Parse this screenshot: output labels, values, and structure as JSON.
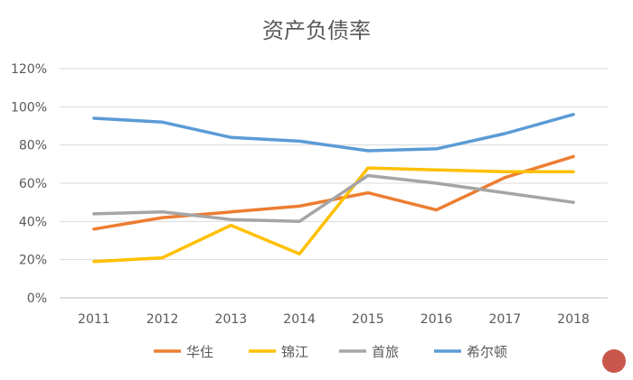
{
  "chart_data": {
    "type": "line",
    "title": "资产负债率",
    "categories": [
      "2011",
      "2012",
      "2013",
      "2014",
      "2015",
      "2016",
      "2017",
      "2018"
    ],
    "yticks": [
      "0%",
      "20%",
      "40%",
      "60%",
      "80%",
      "100%",
      "120%"
    ],
    "ylim": [
      0,
      120
    ],
    "grid": true,
    "legend_position": "bottom",
    "series": [
      {
        "name": "华住",
        "color": "#ED7D31",
        "values": [
          36,
          42,
          45,
          48,
          55,
          46,
          63,
          74
        ]
      },
      {
        "name": "锦江",
        "color": "#FFC000",
        "values": [
          19,
          21,
          38,
          23,
          68,
          67,
          66,
          66
        ]
      },
      {
        "name": "首旅",
        "color": "#A5A5A5",
        "values": [
          44,
          45,
          41,
          40,
          64,
          60,
          55,
          50
        ]
      },
      {
        "name": "希尔顿",
        "color": "#5B9BD5",
        "values": [
          94,
          92,
          84,
          82,
          77,
          78,
          86,
          96
        ]
      }
    ]
  }
}
